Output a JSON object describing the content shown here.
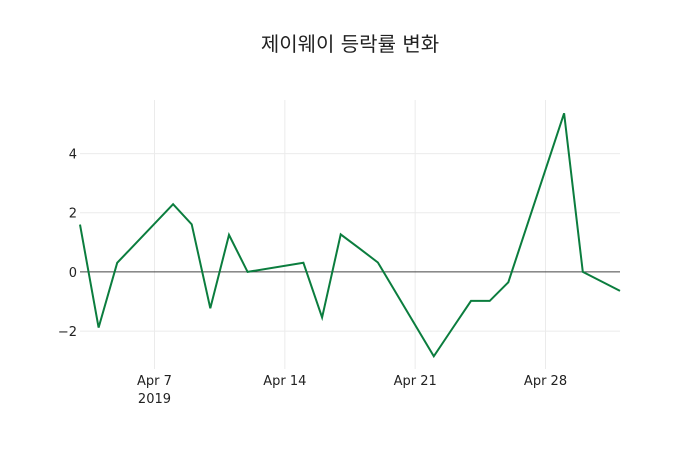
{
  "chart_data": {
    "type": "line",
    "title": "제이웨이 등락률 변화",
    "xlabel": "",
    "ylabel": "",
    "x_tick_labels": [
      "Apr 7",
      "Apr 14",
      "Apr 21",
      "Apr 28"
    ],
    "x_tick_sublabel": "2019",
    "y_tick_labels": [
      "−2",
      "0",
      "2",
      "4"
    ],
    "y_ticks": [
      -2,
      0,
      2,
      4
    ],
    "ylim": [
      -3.28,
      5.81
    ],
    "xlim": [
      "2019-04-03",
      "2019-05-02"
    ],
    "grid": true,
    "zero_line": true,
    "line_color": "#0b7d3e",
    "series": [
      {
        "name": "등락률",
        "x": [
          "2019-04-03",
          "2019-04-04",
          "2019-04-05",
          "2019-04-08",
          "2019-04-09",
          "2019-04-10",
          "2019-04-11",
          "2019-04-12",
          "2019-04-15",
          "2019-04-16",
          "2019-04-17",
          "2019-04-18",
          "2019-04-19",
          "2019-04-22",
          "2019-04-23",
          "2019-04-24",
          "2019-04-25",
          "2019-04-26",
          "2019-04-29",
          "2019-04-30",
          "2019-05-02"
        ],
        "values": [
          1.6,
          -1.88,
          0.31,
          2.29,
          1.61,
          -1.23,
          1.25,
          0.0,
          0.31,
          -1.54,
          1.27,
          0.8,
          0.32,
          -2.85,
          -1.91,
          -0.98,
          -0.98,
          -0.35,
          5.36,
          0.0,
          -0.64
        ]
      }
    ]
  }
}
